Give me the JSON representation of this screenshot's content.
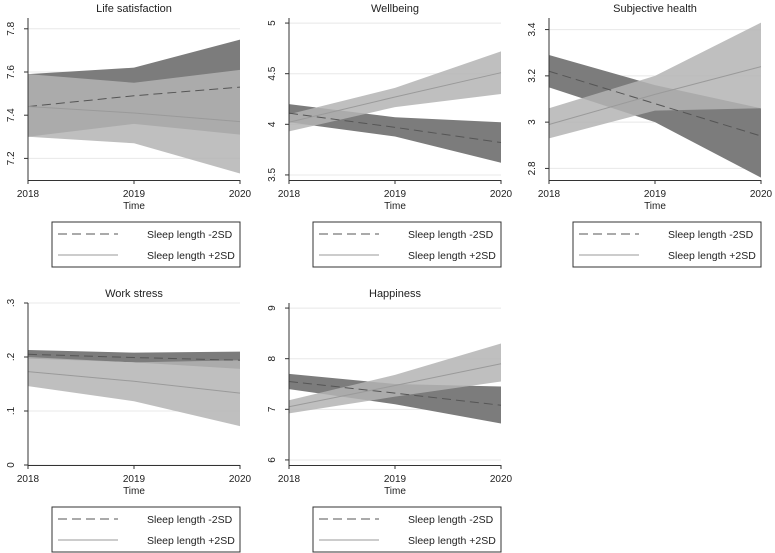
{
  "chart_data": [
    {
      "type": "area",
      "title": "Life satisfaction",
      "xlabel": "Time",
      "x": [
        2018,
        2019,
        2020
      ],
      "ylim": [
        7.1,
        7.85
      ],
      "yticks": [
        7.2,
        7.4,
        7.6,
        7.8
      ],
      "ytick_labels": [
        "7.2",
        "7.4",
        "7.6",
        "7.8"
      ],
      "series": [
        {
          "name": "Sleep length -2SD",
          "values": [
            7.44,
            7.49,
            7.53
          ],
          "lower": [
            7.3,
            7.36,
            7.31
          ],
          "upper": [
            7.59,
            7.62,
            7.75
          ]
        },
        {
          "name": "Sleep length +2SD",
          "values": [
            7.44,
            7.41,
            7.37
          ],
          "lower": [
            7.3,
            7.27,
            7.13
          ],
          "upper": [
            7.59,
            7.55,
            7.61
          ]
        }
      ]
    },
    {
      "type": "area",
      "title": "Wellbeing",
      "xlabel": "Time",
      "x": [
        2018,
        2019,
        2020
      ],
      "ylim": [
        3.45,
        5.05
      ],
      "yticks": [
        3.5,
        4,
        4.5,
        5
      ],
      "ytick_labels": [
        "3.5",
        "4",
        "4.5",
        "5"
      ],
      "series": [
        {
          "name": "Sleep length -2SD",
          "values": [
            4.11,
            3.97,
            3.82
          ],
          "lower": [
            4.02,
            3.88,
            3.62
          ],
          "upper": [
            4.2,
            4.07,
            4.02
          ]
        },
        {
          "name": "Sleep length +2SD",
          "values": [
            4.02,
            4.27,
            4.51
          ],
          "lower": [
            3.93,
            4.17,
            4.3
          ],
          "upper": [
            4.1,
            4.36,
            4.72
          ]
        }
      ]
    },
    {
      "type": "area",
      "title": "Subjective health",
      "xlabel": "Time",
      "x": [
        2018,
        2019,
        2020
      ],
      "ylim": [
        2.75,
        3.45
      ],
      "yticks": [
        2.8,
        3,
        3.2,
        3.4
      ],
      "ytick_labels": [
        "2.8",
        "3",
        "3.2",
        "3.4"
      ],
      "series": [
        {
          "name": "Sleep length -2SD",
          "values": [
            3.22,
            3.08,
            2.94
          ],
          "lower": [
            3.15,
            3.0,
            2.76
          ],
          "upper": [
            3.29,
            3.16,
            3.06
          ]
        },
        {
          "name": "Sleep length +2SD",
          "values": [
            2.99,
            3.12,
            3.24
          ],
          "lower": [
            2.93,
            3.05,
            3.06
          ],
          "upper": [
            3.06,
            3.2,
            3.43
          ]
        }
      ]
    },
    {
      "type": "area",
      "title": "Work stress",
      "xlabel": "Time",
      "x": [
        2018,
        2019,
        2020
      ],
      "ylim": [
        0,
        0.3
      ],
      "yticks": [
        0,
        0.1,
        0.2,
        0.3
      ],
      "ytick_labels": [
        "0",
        ".1",
        ".2",
        ".3"
      ],
      "series": [
        {
          "name": "Sleep length -2SD",
          "values": [
            0.205,
            0.199,
            0.194
          ],
          "lower": [
            0.197,
            0.19,
            0.178
          ],
          "upper": [
            0.213,
            0.208,
            0.21
          ]
        },
        {
          "name": "Sleep length +2SD",
          "values": [
            0.173,
            0.155,
            0.133
          ],
          "lower": [
            0.146,
            0.118,
            0.072
          ],
          "upper": [
            0.2,
            0.19,
            0.194
          ]
        }
      ]
    },
    {
      "type": "area",
      "title": "Happiness",
      "xlabel": "Time",
      "x": [
        2018,
        2019,
        2020
      ],
      "ylim": [
        5.9,
        9.1
      ],
      "yticks": [
        6,
        7,
        8,
        9
      ],
      "ytick_labels": [
        "6",
        "7",
        "8",
        "9"
      ],
      "series": [
        {
          "name": "Sleep length -2SD",
          "values": [
            7.55,
            7.32,
            7.08
          ],
          "lower": [
            7.4,
            7.1,
            6.72
          ],
          "upper": [
            7.7,
            7.5,
            7.45
          ]
        },
        {
          "name": "Sleep length +2SD",
          "values": [
            7.05,
            7.47,
            7.9
          ],
          "lower": [
            6.92,
            7.25,
            7.55
          ],
          "upper": [
            7.18,
            7.68,
            8.3
          ]
        }
      ]
    }
  ],
  "colors": {
    "band_minus": "#7c7c7c",
    "band_plus": "#b4b4b4",
    "overlap": "#a3a3a3",
    "line_minus": "#555555",
    "line_plus": "#9a9a9a",
    "axis": "#333333",
    "grid": "#e8e8e8"
  }
}
